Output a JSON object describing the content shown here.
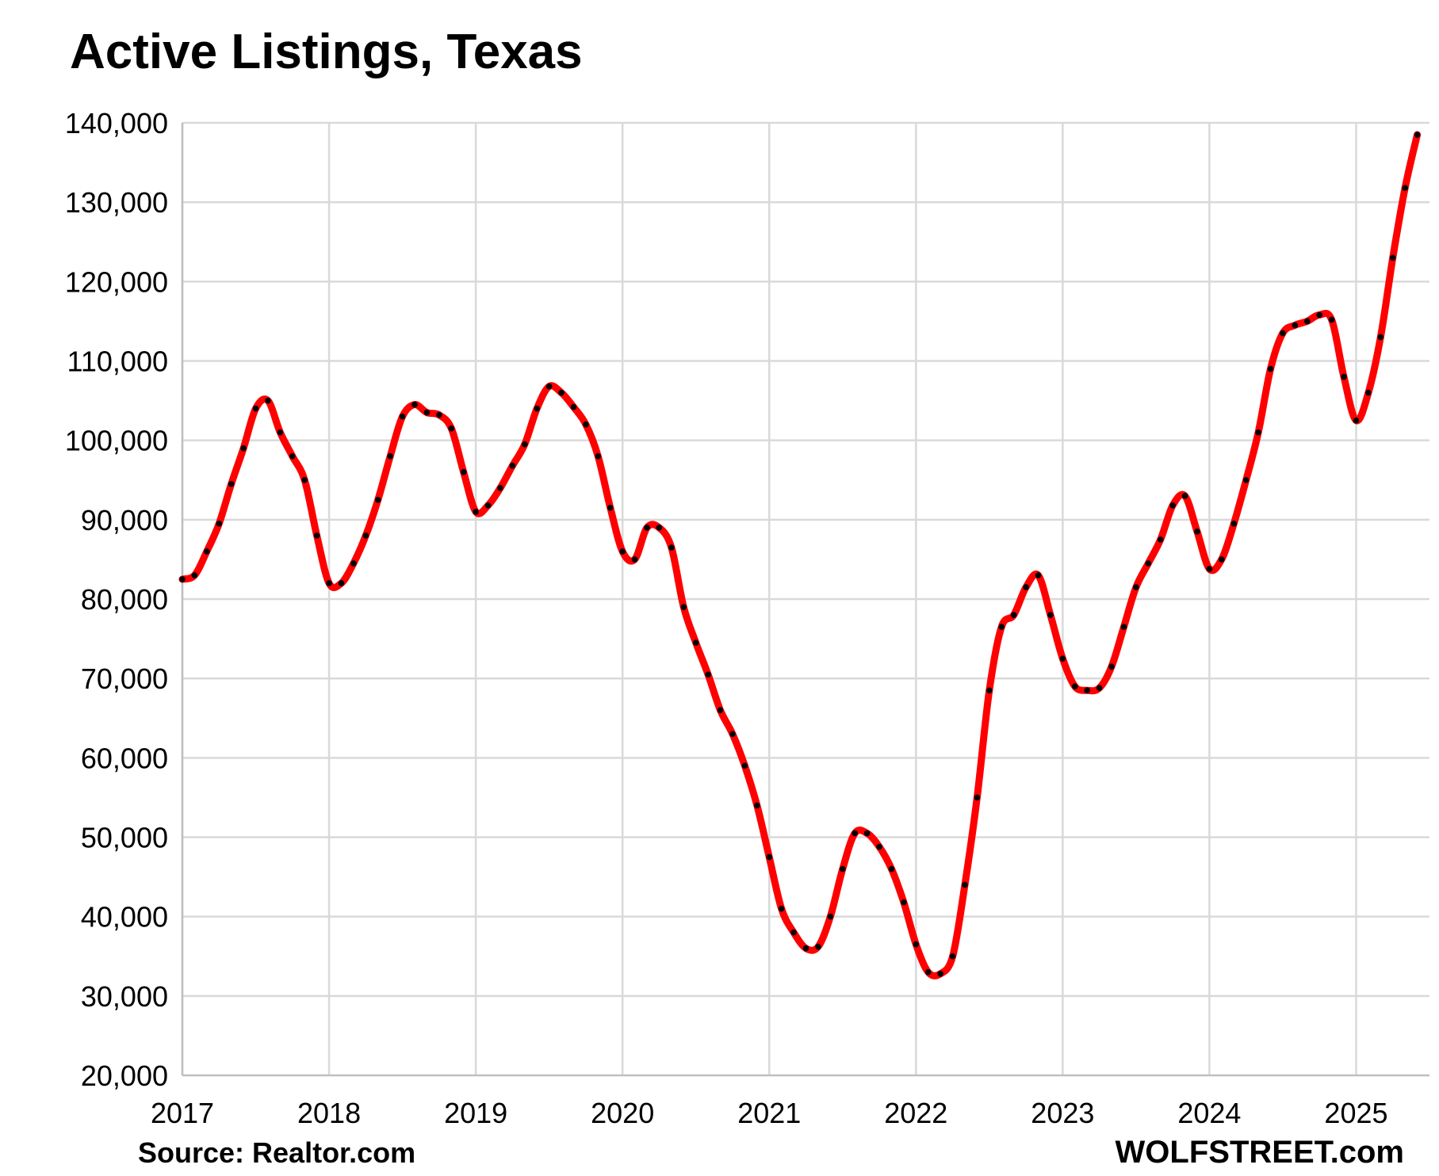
{
  "chart_data": {
    "type": "line",
    "title": "Active Listings, Texas",
    "xlabel": "",
    "ylabel": "",
    "ylim": [
      20000,
      140000
    ],
    "xlim": [
      2017.0,
      2025.5
    ],
    "yticks": [
      "20,000",
      "30,000",
      "40,000",
      "50,000",
      "60,000",
      "70,000",
      "80,000",
      "90,000",
      "100,000",
      "110,000",
      "120,000",
      "130,000",
      "140,000"
    ],
    "xticks": [
      "2017",
      "2018",
      "2019",
      "2020",
      "2021",
      "2022",
      "2023",
      "2024",
      "2025"
    ],
    "grid": true,
    "legend": "none",
    "series": [
      {
        "color": "#ff0000",
        "marker_color": "#000000",
        "start": "2017-01",
        "values": [
          82500,
          83000,
          86000,
          89500,
          94500,
          99000,
          104000,
          105000,
          101000,
          98000,
          95000,
          88000,
          82000,
          82000,
          84500,
          88000,
          92500,
          98000,
          103000,
          104500,
          103500,
          103200,
          101500,
          96000,
          91000,
          91800,
          94000,
          96800,
          99500,
          104000,
          106800,
          106000,
          104200,
          102000,
          98000,
          91500,
          86000,
          85000,
          89000,
          89000,
          86500,
          79000,
          74500,
          70500,
          66000,
          63000,
          59000,
          54000,
          47500,
          41000,
          38000,
          36000,
          36200,
          40000,
          46000,
          50500,
          50500,
          48800,
          46000,
          41800,
          36500,
          33000,
          32800,
          35000,
          44000,
          55000,
          68500,
          76500,
          78000,
          81500,
          83000,
          78000,
          72500,
          69000,
          68500,
          68800,
          71500,
          76500,
          81500,
          84500,
          87500,
          91800,
          93000,
          88500,
          83800,
          85000,
          89500,
          95000,
          101000,
          109000,
          113500,
          114500,
          115000,
          115800,
          115200,
          108000,
          102500,
          106000,
          113000,
          123000,
          131800,
          138500
        ]
      }
    ]
  },
  "source": "Source: Realtor.com",
  "brand": "WOLFSTREET.com"
}
